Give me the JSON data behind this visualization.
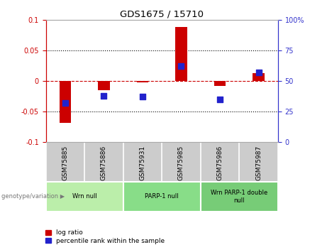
{
  "title": "GDS1675 / 15710",
  "samples": [
    "GSM75885",
    "GSM75886",
    "GSM75931",
    "GSM75985",
    "GSM75986",
    "GSM75987"
  ],
  "log_ratios": [
    -0.068,
    -0.015,
    -0.002,
    0.088,
    -0.008,
    0.013
  ],
  "percentile_ranks": [
    32,
    38,
    37,
    62,
    35,
    57
  ],
  "groups": [
    {
      "label": "Wrn null",
      "color": "#bbeeaa",
      "span": [
        0,
        1
      ]
    },
    {
      "label": "PARP-1 null",
      "color": "#88dd88",
      "span": [
        2,
        3
      ]
    },
    {
      "label": "Wrn PARP-1 double\nnull",
      "color": "#77cc77",
      "span": [
        4,
        5
      ]
    }
  ],
  "ylim_left": [
    -0.1,
    0.1
  ],
  "ylim_right": [
    0,
    100
  ],
  "yticks_left": [
    -0.1,
    -0.05,
    0,
    0.05,
    0.1
  ],
  "yticks_right": [
    0,
    25,
    50,
    75,
    100
  ],
  "left_color": "#cc0000",
  "right_color": "#3333cc",
  "bar_color": "#cc0000",
  "dot_color": "#2222cc",
  "zero_line_color": "#cc0000",
  "grid_color": "#000000",
  "bg_color": "#ffffff",
  "plot_bg": "#ffffff",
  "sample_bg": "#cccccc",
  "legend_items": [
    "log ratio",
    "percentile rank within the sample"
  ],
  "legend_colors": [
    "#cc0000",
    "#2222cc"
  ],
  "group_header": "genotype/variation"
}
